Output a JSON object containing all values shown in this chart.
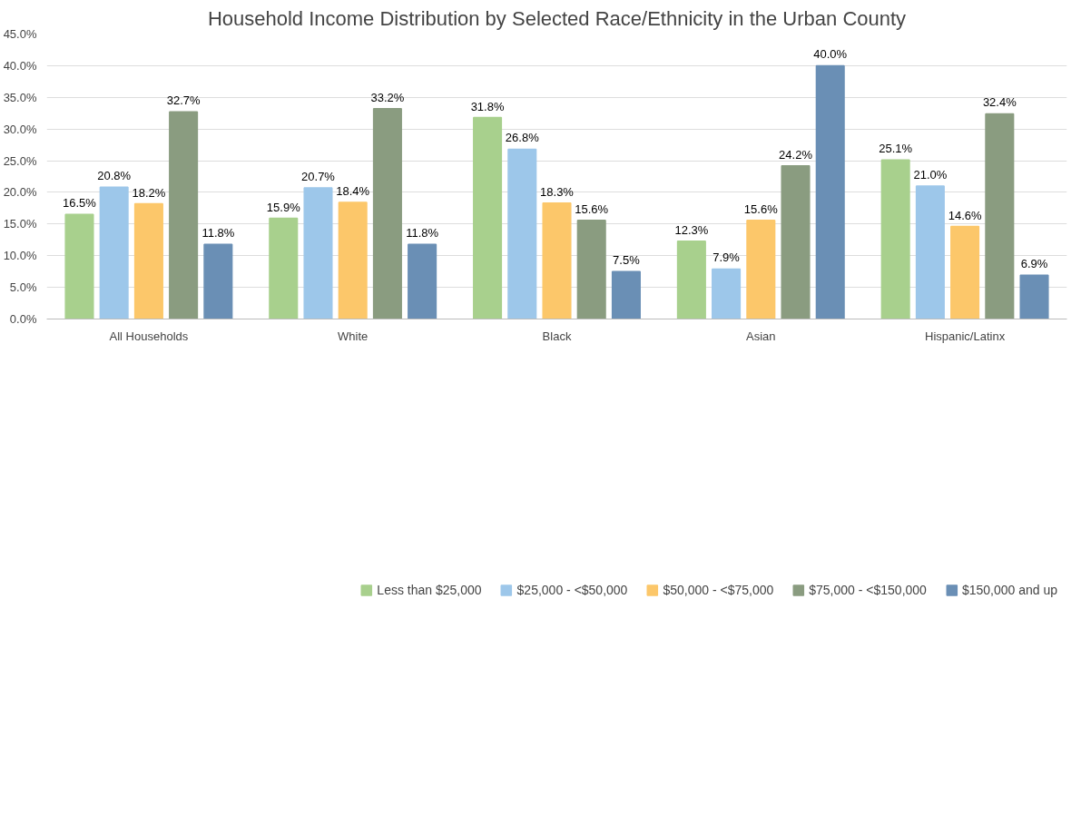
{
  "chart_data": {
    "type": "bar",
    "title": "Household Income Distribution by Selected Race/Ethnicity in the Urban County",
    "categories": [
      "All Households",
      "White",
      "Black",
      "Asian",
      "Hispanic/Latinx"
    ],
    "series": [
      {
        "name": "Less than $25,000",
        "color": "#a8d08d",
        "values": [
          16.5,
          15.9,
          31.8,
          12.3,
          25.1
        ]
      },
      {
        "name": "$25,000 - <$50,000",
        "color": "#9dc7ea",
        "values": [
          20.8,
          20.7,
          26.8,
          7.9,
          21.0
        ]
      },
      {
        "name": "$50,000 - <$75,000",
        "color": "#fcc76a",
        "values": [
          18.2,
          18.4,
          18.3,
          15.6,
          14.6
        ]
      },
      {
        "name": "$75,000 - <$150,000",
        "color": "#8a9c80",
        "values": [
          32.7,
          33.2,
          15.6,
          24.2,
          32.4
        ]
      },
      {
        "name": "$150,000 and up",
        "color": "#6a8fb5",
        "values": [
          11.8,
          11.8,
          7.5,
          40.0,
          6.9
        ]
      }
    ],
    "ylim": [
      0,
      45
    ],
    "yticks": [
      {
        "value": 0,
        "label": "0.0%"
      },
      {
        "value": 5,
        "label": "5.0%"
      },
      {
        "value": 10,
        "label": "10.0%"
      },
      {
        "value": 15,
        "label": "15.0%"
      },
      {
        "value": 20,
        "label": "20.0%"
      },
      {
        "value": 25,
        "label": "25.0%"
      },
      {
        "value": 30,
        "label": "30.0%"
      },
      {
        "value": 35,
        "label": "35.0%"
      },
      {
        "value": 40,
        "label": "40.0%"
      },
      {
        "value": 45,
        "label": "45.0%"
      }
    ],
    "value_labels": [
      [
        "16.5%",
        "15.9%",
        "31.8%",
        "12.3%",
        "25.1%"
      ],
      [
        "20.8%",
        "20.7%",
        "26.8%",
        "7.9%",
        "21.0%"
      ],
      [
        "18.2%",
        "18.4%",
        "18.3%",
        "15.6%",
        "14.6%"
      ],
      [
        "32.7%",
        "33.2%",
        "15.6%",
        "24.2%",
        "32.4%"
      ],
      [
        "11.8%",
        "11.8%",
        "7.5%",
        "40.0%",
        "6.9%"
      ]
    ],
    "grid": "y",
    "legend": "bottom"
  }
}
